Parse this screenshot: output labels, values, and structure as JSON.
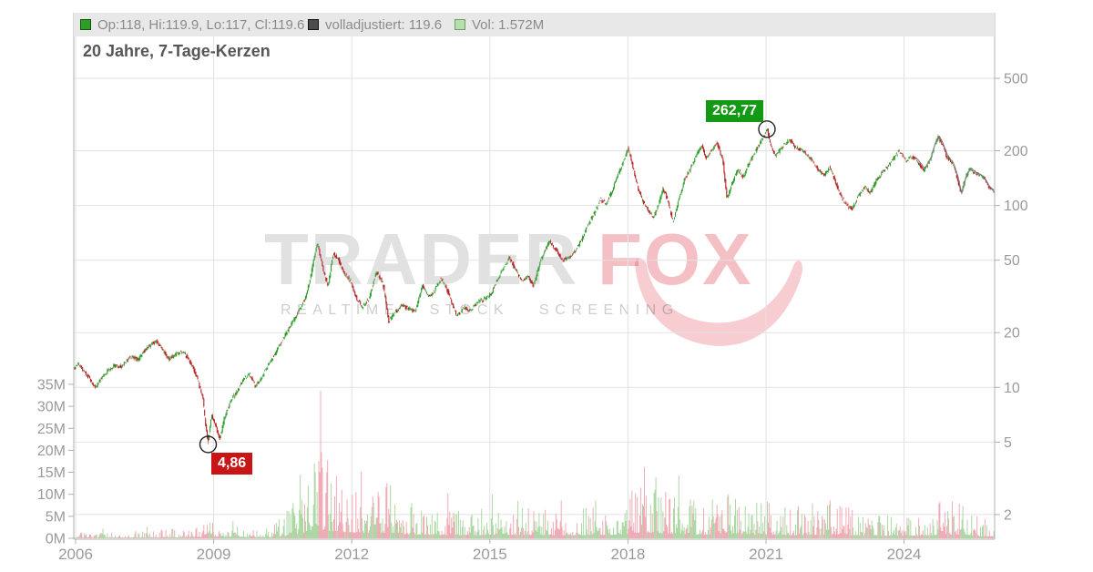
{
  "title": "20 Jahre, 7-Tage-Kerzen",
  "legend": {
    "ohlc": {
      "label": "Op:118, Hi:119.9, Lo:117, Cl:119.6",
      "swatch_color": "#2f9e27"
    },
    "adjusted": {
      "label": "volladjustiert: 119.6",
      "swatch_color": "#4c4c4c"
    },
    "volume": {
      "label": "Vol: 1.572M",
      "swatch_color": "#b6dfae"
    }
  },
  "watermark": {
    "part1": "TRADER",
    "part2": "FOX",
    "tagline": "REALTIME STOCK SCREENING"
  },
  "annotations": {
    "high": {
      "label": "262,77",
      "value": 262.77,
      "x": 2021.02
    },
    "low": {
      "label": "4,86",
      "value": 4.86,
      "x": 2008.88
    }
  },
  "chart_data": {
    "type": "candlestick",
    "title": "20 Jahre, 7-Tage-Kerzen",
    "x_range": [
      2005.96,
      2025.97
    ],
    "x_ticks": [
      2006,
      2009,
      2012,
      2015,
      2018,
      2021,
      2024
    ],
    "price_axis": {
      "side": "right",
      "scale": "log",
      "ticks": [
        500,
        200,
        100,
        50,
        20,
        10,
        5,
        2
      ]
    },
    "volume_axis": {
      "side": "left",
      "tick_labels": [
        "35M",
        "30M",
        "25M",
        "20M",
        "15M",
        "10M",
        "5M",
        "0M"
      ],
      "tick_values": [
        35,
        30,
        25,
        20,
        15,
        10,
        5,
        0
      ],
      "unit": "M"
    },
    "grid": true,
    "last": {
      "open": 118,
      "high": 119.9,
      "low": 117,
      "close": 119.6,
      "volume_m": 1.572
    },
    "price_anchors": [
      [
        2005.96,
        12.6
      ],
      [
        2006.08,
        13.6
      ],
      [
        2006.2,
        12.2
      ],
      [
        2006.32,
        11.2
      ],
      [
        2006.45,
        10.0
      ],
      [
        2006.58,
        11.2
      ],
      [
        2006.72,
        12.4
      ],
      [
        2006.85,
        13.2
      ],
      [
        2007.0,
        13.0
      ],
      [
        2007.12,
        14.0
      ],
      [
        2007.25,
        14.8
      ],
      [
        2007.38,
        14.2
      ],
      [
        2007.5,
        15.8
      ],
      [
        2007.65,
        17.2
      ],
      [
        2007.78,
        18.0
      ],
      [
        2007.9,
        16.2
      ],
      [
        2008.05,
        14.3
      ],
      [
        2008.2,
        15.2
      ],
      [
        2008.35,
        15.8
      ],
      [
        2008.5,
        14.0
      ],
      [
        2008.65,
        11.5
      ],
      [
        2008.78,
        8.8
      ],
      [
        2008.85,
        6.0
      ],
      [
        2008.9,
        5.0
      ],
      [
        2008.97,
        7.2
      ],
      [
        2009.05,
        6.2
      ],
      [
        2009.15,
        5.2
      ],
      [
        2009.25,
        6.8
      ],
      [
        2009.4,
        8.5
      ],
      [
        2009.55,
        9.8
      ],
      [
        2009.7,
        11.3
      ],
      [
        2009.8,
        11.8
      ],
      [
        2009.92,
        10.1
      ],
      [
        2010.05,
        11.2
      ],
      [
        2010.2,
        13.2
      ],
      [
        2010.35,
        15.3
      ],
      [
        2010.5,
        18.0
      ],
      [
        2010.62,
        20.5
      ],
      [
        2010.72,
        22.5
      ],
      [
        2010.82,
        25.0
      ],
      [
        2010.9,
        27.5
      ],
      [
        2011.0,
        30.5
      ],
      [
        2011.1,
        38.0
      ],
      [
        2011.2,
        52.0
      ],
      [
        2011.28,
        62.0
      ],
      [
        2011.38,
        46.0
      ],
      [
        2011.5,
        36.0
      ],
      [
        2011.62,
        55.0
      ],
      [
        2011.72,
        51.0
      ],
      [
        2011.85,
        42.0
      ],
      [
        2012.0,
        38.5
      ],
      [
        2012.12,
        31.0
      ],
      [
        2012.25,
        27.5
      ],
      [
        2012.4,
        31.0
      ],
      [
        2012.55,
        43.5
      ],
      [
        2012.7,
        37.0
      ],
      [
        2012.82,
        23.0
      ],
      [
        2012.95,
        25.5
      ],
      [
        2013.1,
        28.5
      ],
      [
        2013.25,
        27.0
      ],
      [
        2013.4,
        26.0
      ],
      [
        2013.55,
        36.5
      ],
      [
        2013.68,
        31.5
      ],
      [
        2013.8,
        33.5
      ],
      [
        2013.95,
        40.0
      ],
      [
        2014.1,
        34.0
      ],
      [
        2014.3,
        24.5
      ],
      [
        2014.45,
        27.5
      ],
      [
        2014.6,
        26.5
      ],
      [
        2014.75,
        29.5
      ],
      [
        2014.9,
        30.5
      ],
      [
        2015.05,
        33.0
      ],
      [
        2015.2,
        40.0
      ],
      [
        2015.35,
        47.0
      ],
      [
        2015.45,
        52.0
      ],
      [
        2015.58,
        44.0
      ],
      [
        2015.72,
        39.0
      ],
      [
        2015.85,
        40.5
      ],
      [
        2015.97,
        36.0
      ],
      [
        2016.1,
        48.0
      ],
      [
        2016.22,
        57.0
      ],
      [
        2016.32,
        64.0
      ],
      [
        2016.45,
        57.0
      ],
      [
        2016.58,
        50.0
      ],
      [
        2016.72,
        51.5
      ],
      [
        2016.85,
        55.0
      ],
      [
        2017.0,
        64.0
      ],
      [
        2017.15,
        78.0
      ],
      [
        2017.3,
        92.0
      ],
      [
        2017.42,
        108.0
      ],
      [
        2017.55,
        102.0
      ],
      [
        2017.68,
        122.0
      ],
      [
        2017.8,
        148.0
      ],
      [
        2017.92,
        175.0
      ],
      [
        2018.02,
        208.0
      ],
      [
        2018.12,
        165.0
      ],
      [
        2018.22,
        130.0
      ],
      [
        2018.32,
        108.0
      ],
      [
        2018.45,
        95.0
      ],
      [
        2018.58,
        86.0
      ],
      [
        2018.68,
        100.0
      ],
      [
        2018.78,
        124.0
      ],
      [
        2018.88,
        108.0
      ],
      [
        2019.0,
        81.0
      ],
      [
        2019.12,
        108.0
      ],
      [
        2019.25,
        140.0
      ],
      [
        2019.38,
        160.0
      ],
      [
        2019.5,
        190.0
      ],
      [
        2019.62,
        214.0
      ],
      [
        2019.72,
        182.0
      ],
      [
        2019.85,
        205.0
      ],
      [
        2019.95,
        224.0
      ],
      [
        2020.08,
        176.0
      ],
      [
        2020.17,
        110.0
      ],
      [
        2020.28,
        132.0
      ],
      [
        2020.4,
        158.0
      ],
      [
        2020.52,
        143.0
      ],
      [
        2020.65,
        170.0
      ],
      [
        2020.78,
        196.0
      ],
      [
        2020.9,
        225.0
      ],
      [
        2021.0,
        248.0
      ],
      [
        2021.05,
        260.0
      ],
      [
        2021.12,
        215.0
      ],
      [
        2021.22,
        186.0
      ],
      [
        2021.32,
        202.0
      ],
      [
        2021.45,
        222.0
      ],
      [
        2021.55,
        228.0
      ],
      [
        2021.65,
        210.0
      ],
      [
        2021.78,
        202.0
      ],
      [
        2021.9,
        190.0
      ],
      [
        2022.02,
        178.0
      ],
      [
        2022.15,
        158.0
      ],
      [
        2022.28,
        146.0
      ],
      [
        2022.4,
        162.0
      ],
      [
        2022.52,
        136.0
      ],
      [
        2022.65,
        112.0
      ],
      [
        2022.78,
        100.0
      ],
      [
        2022.9,
        96.0
      ],
      [
        2023.02,
        112.0
      ],
      [
        2023.15,
        126.0
      ],
      [
        2023.28,
        118.0
      ],
      [
        2023.42,
        138.0
      ],
      [
        2023.55,
        152.0
      ],
      [
        2023.7,
        168.0
      ],
      [
        2023.82,
        186.0
      ],
      [
        2023.92,
        200.0
      ],
      [
        2024.05,
        176.0
      ],
      [
        2024.18,
        186.0
      ],
      [
        2024.32,
        172.0
      ],
      [
        2024.45,
        156.0
      ],
      [
        2024.58,
        178.0
      ],
      [
        2024.68,
        215.0
      ],
      [
        2024.76,
        238.0
      ],
      [
        2024.85,
        215.0
      ],
      [
        2024.95,
        185.0
      ],
      [
        2025.08,
        168.0
      ],
      [
        2025.18,
        140.0
      ],
      [
        2025.25,
        116.0
      ],
      [
        2025.35,
        142.0
      ],
      [
        2025.45,
        160.0
      ],
      [
        2025.55,
        152.0
      ],
      [
        2025.65,
        148.0
      ],
      [
        2025.75,
        142.0
      ],
      [
        2025.85,
        128.0
      ],
      [
        2025.97,
        119.6
      ]
    ],
    "volume_anchors_m": [
      [
        2005.96,
        0.5
      ],
      [
        2007.0,
        0.55
      ],
      [
        2007.9,
        0.9
      ],
      [
        2008.5,
        0.8
      ],
      [
        2008.9,
        1.6
      ],
      [
        2009.3,
        1.3
      ],
      [
        2009.8,
        0.9
      ],
      [
        2010.3,
        1.2
      ],
      [
        2010.6,
        2.5
      ],
      [
        2010.85,
        4.0
      ],
      [
        2011.1,
        6.0
      ],
      [
        2011.3,
        8.0
      ],
      [
        2011.6,
        6.5
      ],
      [
        2011.9,
        5.5
      ],
      [
        2012.3,
        5.0
      ],
      [
        2012.8,
        5.0
      ],
      [
        2013.3,
        3.5
      ],
      [
        2013.9,
        3.0
      ],
      [
        2014.5,
        2.6
      ],
      [
        2015.1,
        3.2
      ],
      [
        2015.6,
        3.2
      ],
      [
        2016.2,
        2.8
      ],
      [
        2016.8,
        2.8
      ],
      [
        2017.4,
        3.0
      ],
      [
        2017.9,
        3.4
      ],
      [
        2018.3,
        5.5
      ],
      [
        2018.7,
        4.5
      ],
      [
        2019.2,
        4.0
      ],
      [
        2019.7,
        3.2
      ],
      [
        2020.2,
        4.5
      ],
      [
        2020.7,
        3.2
      ],
      [
        2021.1,
        3.4
      ],
      [
        2021.6,
        2.8
      ],
      [
        2022.1,
        3.2
      ],
      [
        2022.6,
        3.0
      ],
      [
        2023.1,
        2.6
      ],
      [
        2023.6,
        2.4
      ],
      [
        2024.1,
        2.4
      ],
      [
        2024.6,
        2.6
      ],
      [
        2024.9,
        3.6
      ],
      [
        2025.25,
        3.2
      ],
      [
        2025.6,
        2.0
      ],
      [
        2025.97,
        1.6
      ]
    ],
    "volume_spikes_m": [
      [
        2006.6,
        2.2
      ],
      [
        2007.55,
        2.6
      ],
      [
        2008.92,
        3.6
      ],
      [
        2009.42,
        3.9
      ],
      [
        2010.72,
        8.0
      ],
      [
        2010.88,
        14.5
      ],
      [
        2011.05,
        12.0
      ],
      [
        2011.18,
        17.0
      ],
      [
        2011.32,
        33.5
      ],
      [
        2011.45,
        15.0
      ],
      [
        2011.55,
        12.5
      ],
      [
        2011.78,
        11.0
      ],
      [
        2012.2,
        15.2
      ],
      [
        2012.45,
        9.5
      ],
      [
        2012.58,
        10.5
      ],
      [
        2012.85,
        12.0
      ],
      [
        2013.3,
        8.0
      ],
      [
        2014.1,
        10.2
      ],
      [
        2015.05,
        10.0
      ],
      [
        2015.6,
        8.5
      ],
      [
        2016.55,
        8.6
      ],
      [
        2017.3,
        8.6
      ],
      [
        2018.05,
        9.0
      ],
      [
        2018.35,
        16.2
      ],
      [
        2018.6,
        13.8
      ],
      [
        2018.82,
        10.5
      ],
      [
        2019.1,
        14.3
      ],
      [
        2020.18,
        10.0
      ],
      [
        2021.06,
        8.0
      ],
      [
        2022.4,
        8.6
      ],
      [
        2022.8,
        7.0
      ],
      [
        2024.78,
        8.3
      ],
      [
        2024.95,
        6.2
      ],
      [
        2025.27,
        7.4
      ]
    ],
    "colors": {
      "up": "#2b9c2b",
      "down": "#b22323",
      "vol_up": "#acd8a4",
      "vol_down": "#f0acb6",
      "adjusted_line": "#7a7a7a",
      "grid": "#e2e2e2",
      "axis": "#b0b0b0",
      "tick_label": "#9a9a9a",
      "high_badge": "#149914",
      "low_badge": "#c81515"
    }
  }
}
